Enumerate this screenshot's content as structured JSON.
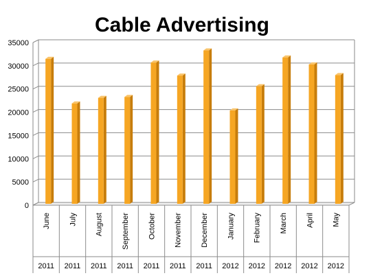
{
  "chart_data": {
    "type": "bar",
    "title": "Cable Advertising",
    "categories": [
      "June",
      "July",
      "August",
      "September",
      "October",
      "November",
      "December",
      "January",
      "February",
      "March",
      "April",
      "May"
    ],
    "years": [
      "2011",
      "2011",
      "2011",
      "2011",
      "2011",
      "2011",
      "2011",
      "2012",
      "2012",
      "2012",
      "2012",
      "2012"
    ],
    "values": [
      31200,
      21600,
      22800,
      23000,
      30400,
      27600,
      33000,
      20100,
      25300,
      31500,
      30000,
      27700
    ],
    "ylim": [
      0,
      35000
    ],
    "yticks": [
      "0",
      "5000",
      "10000",
      "15000",
      "20000",
      "25000",
      "30000",
      "35000"
    ],
    "grid": true,
    "legend": "none",
    "colors": {
      "bar_front": "#f6a623",
      "bar_side": "#c77d0c",
      "bar_top": "#f9c46b",
      "grid": "#8a8a8a"
    }
  }
}
